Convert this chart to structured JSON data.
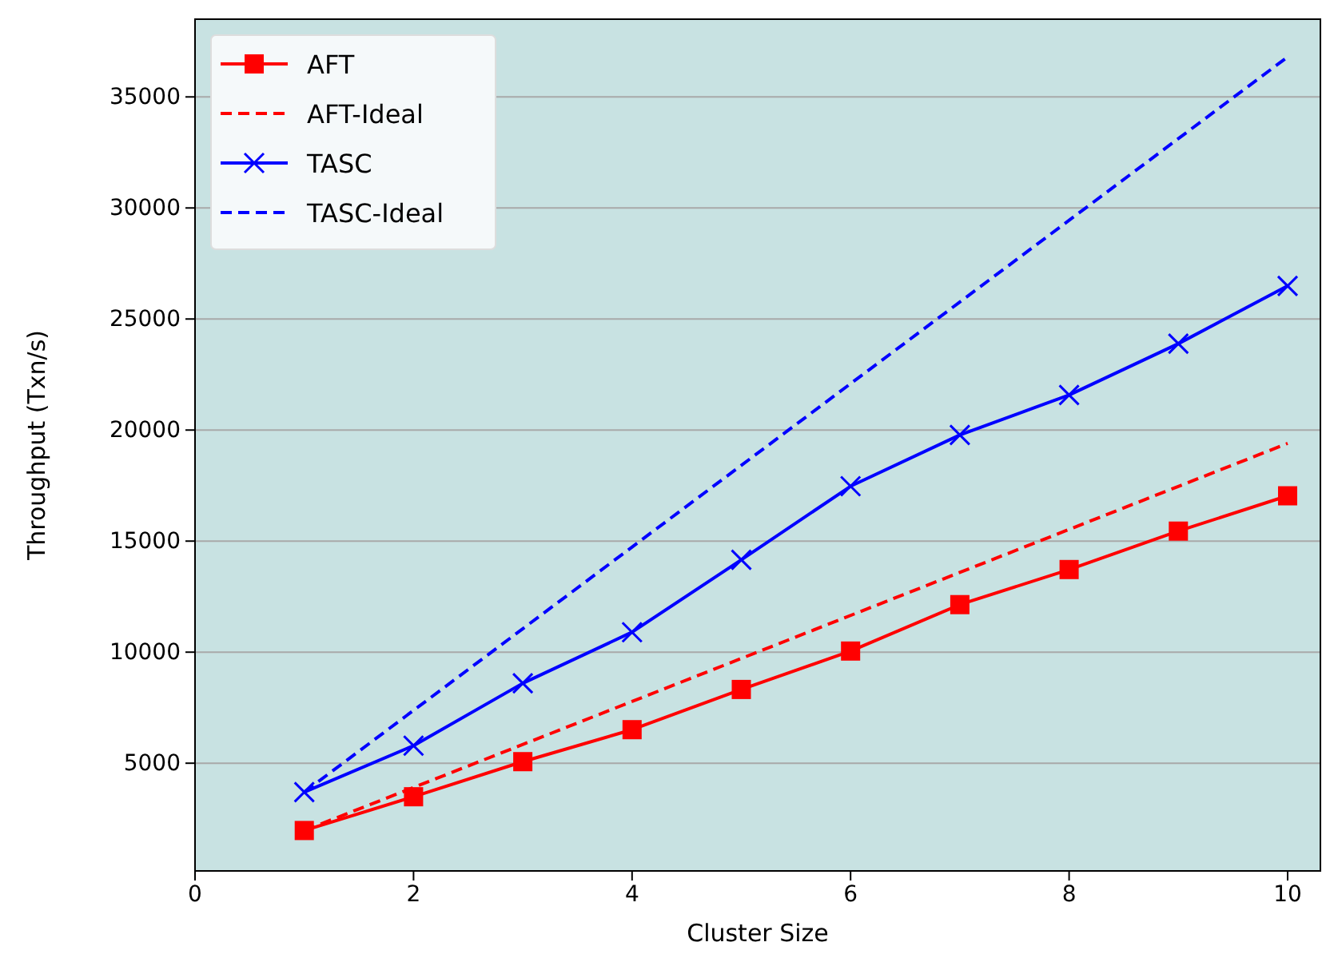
{
  "chart_data": {
    "type": "line",
    "xlabel": "Cluster Size",
    "ylabel": "Throughput (Txn/s)",
    "xlim": [
      0,
      10.3
    ],
    "xticks": [
      0,
      2,
      4,
      6,
      8,
      10
    ],
    "ylim": [
      150,
      38500
    ],
    "yticks": [
      5000,
      10000,
      15000,
      20000,
      25000,
      30000,
      35000
    ],
    "grid": "y",
    "legend": "top left",
    "series": [
      {
        "name": "AFT",
        "color": "#ff0000",
        "marker": "square",
        "line_style": "solid",
        "x": [
          1,
          2,
          3,
          4,
          5,
          6,
          7,
          8,
          9,
          10
        ],
        "values": [
          1970,
          3490,
          5070,
          6510,
          8320,
          10050,
          12140,
          13720,
          15450,
          17040
        ]
      },
      {
        "name": "AFT-Ideal",
        "color": "#ff0000",
        "marker": "none",
        "line_style": "dashed",
        "x": [
          1,
          10
        ],
        "values": [
          1970,
          19400
        ]
      },
      {
        "name": "TASC",
        "color": "#0000ff",
        "marker": "cross",
        "line_style": "solid",
        "x": [
          1,
          2,
          3,
          4,
          5,
          6,
          7,
          8,
          9,
          10
        ],
        "values": [
          3700,
          5790,
          8600,
          10900,
          14160,
          17470,
          19780,
          21580,
          23890,
          26490
        ]
      },
      {
        "name": "TASC-Ideal",
        "color": "#0000ff",
        "marker": "none",
        "line_style": "dashed",
        "x": [
          1,
          10
        ],
        "values": [
          3700,
          36800
        ]
      }
    ]
  }
}
